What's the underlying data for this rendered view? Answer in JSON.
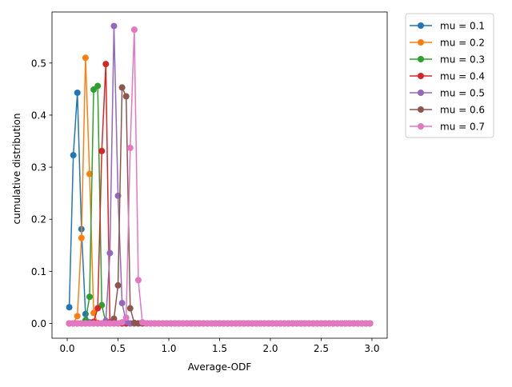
{
  "chart_data": {
    "type": "line",
    "title": "",
    "xlabel": "Average-ODF",
    "ylabel": "cumulative distribution",
    "xlim": [
      -0.15,
      3.15
    ],
    "ylim": [
      -0.0285,
      0.598
    ],
    "xticks": [
      0.0,
      0.5,
      1.0,
      1.5,
      2.0,
      2.5,
      3.0
    ],
    "xtick_labels": [
      "0.0",
      "0.5",
      "1.0",
      "1.5",
      "2.0",
      "2.5",
      "3.0"
    ],
    "yticks": [
      0.0,
      0.1,
      0.2,
      0.3,
      0.4,
      0.5
    ],
    "ytick_labels": [
      "0.0",
      "0.1",
      "0.2",
      "0.3",
      "0.4",
      "0.5"
    ],
    "grid": false,
    "legend_position": "outside-upper-right",
    "marker": "circle",
    "x_start": 0.02,
    "x_step": 0.04,
    "x_count": 75,
    "series": [
      {
        "name": "mu = 0.1",
        "color": "#1f77b4",
        "peaks": [
          [
            0.02,
            0.031
          ],
          [
            0.06,
            0.323
          ],
          [
            0.1,
            0.443
          ],
          [
            0.14,
            0.181
          ],
          [
            0.18,
            0.018
          ],
          [
            0.22,
            0.002
          ]
        ]
      },
      {
        "name": "mu = 0.2",
        "color": "#ff7f0e",
        "peaks": [
          [
            0.1,
            0.014
          ],
          [
            0.14,
            0.164
          ],
          [
            0.18,
            0.51
          ],
          [
            0.22,
            0.287
          ],
          [
            0.26,
            0.02
          ],
          [
            0.3,
            0.001
          ]
        ]
      },
      {
        "name": "mu = 0.3",
        "color": "#2ca02c",
        "peaks": [
          [
            0.18,
            0.006
          ],
          [
            0.22,
            0.051
          ],
          [
            0.26,
            0.449
          ],
          [
            0.3,
            0.456
          ],
          [
            0.34,
            0.035
          ],
          [
            0.38,
            0.002
          ]
        ]
      },
      {
        "name": "mu = 0.4",
        "color": "#d62728",
        "peaks": [
          [
            0.26,
            0.003
          ],
          [
            0.3,
            0.029
          ],
          [
            0.34,
            0.331
          ],
          [
            0.38,
            0.498
          ],
          [
            0.42,
            0.002
          ]
        ]
      },
      {
        "name": "mu = 0.5",
        "color": "#9467bd",
        "peaks": [
          [
            0.38,
            0.005
          ],
          [
            0.42,
            0.135
          ],
          [
            0.46,
            0.571
          ],
          [
            0.5,
            0.245
          ],
          [
            0.54,
            0.039
          ],
          [
            0.58,
            0.003
          ]
        ]
      },
      {
        "name": "mu = 0.6",
        "color": "#8c564b",
        "peaks": [
          [
            0.46,
            0.009
          ],
          [
            0.5,
            0.073
          ],
          [
            0.54,
            0.453
          ],
          [
            0.58,
            0.436
          ],
          [
            0.62,
            0.029
          ],
          [
            0.66,
            0.001
          ],
          [
            0.7,
            0.0
          ]
        ]
      },
      {
        "name": "mu = 0.7",
        "color": "#e377c2",
        "peaks": [
          [
            0.54,
            0.002
          ],
          [
            0.58,
            0.011
          ],
          [
            0.62,
            0.337
          ],
          [
            0.66,
            0.564
          ],
          [
            0.7,
            0.083
          ],
          [
            0.74,
            0.002
          ]
        ]
      }
    ]
  }
}
